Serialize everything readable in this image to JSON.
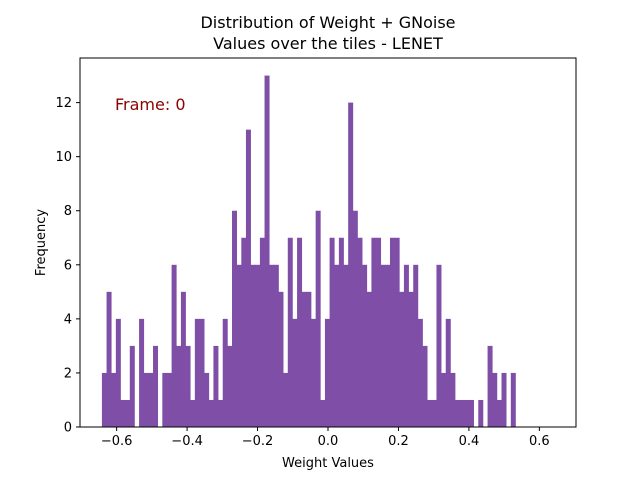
{
  "chart_data": {
    "type": "bar",
    "title_lines": [
      "Distribution of Weight + GNoise",
      "Values over the tiles - LENET"
    ],
    "xlabel": "Weight Values",
    "ylabel": "Frequency",
    "xlim": [
      -0.704,
      0.704
    ],
    "ylim": [
      0,
      13.65
    ],
    "x_ticks": [
      -0.6,
      -0.4,
      -0.2,
      0.0,
      0.2,
      0.4,
      0.6
    ],
    "x_tick_labels": [
      "−0.6",
      "−0.4",
      "−0.2",
      "0.0",
      "0.2",
      "0.4",
      "0.6"
    ],
    "y_ticks": [
      0,
      2,
      4,
      6,
      8,
      10,
      12
    ],
    "y_tick_labels": [
      "0",
      "2",
      "4",
      "6",
      "8",
      "10",
      "12"
    ],
    "grid": false,
    "bin_start": -0.6418,
    "bin_width": 0.01319,
    "bar_color": "#7f4fa8",
    "counts": [
      2,
      5,
      2,
      4,
      1,
      1,
      3,
      0,
      4,
      2,
      2,
      3,
      0,
      2,
      2,
      6,
      3,
      5,
      3,
      1,
      4,
      4,
      2,
      1,
      3,
      1,
      4,
      3,
      8,
      6,
      7,
      11,
      6,
      6,
      7,
      13,
      6,
      6,
      5,
      2,
      7,
      4,
      7,
      5,
      5,
      4,
      8,
      1,
      4,
      7,
      6,
      7,
      6,
      12,
      8,
      7,
      6,
      5,
      7,
      7,
      6,
      6,
      7,
      7,
      5,
      6,
      5,
      6,
      4,
      3,
      1,
      1,
      6,
      2,
      4,
      2,
      1,
      1,
      1,
      1,
      0,
      1,
      0,
      3,
      2,
      1,
      2,
      0,
      2,
      0
    ]
  },
  "annotation": {
    "text": "Frame: 0",
    "color": "#8b0000"
  }
}
